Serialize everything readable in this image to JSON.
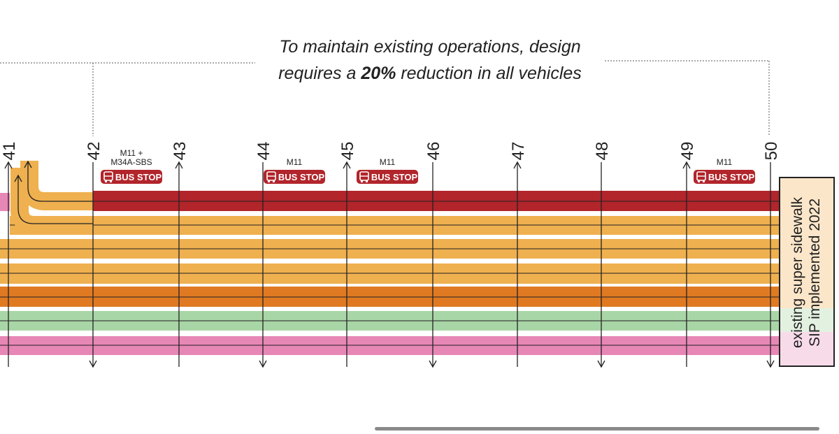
{
  "caption": {
    "line1": "To maintain existing operations, design",
    "line2_prefix": "requires a ",
    "line2_bold": "20%",
    "line2_suffix": " reduction in all vehicles"
  },
  "streets": [
    "41",
    "42",
    "43",
    "44",
    "45",
    "46",
    "47",
    "48",
    "49",
    "50"
  ],
  "street_arrows": [
    "up",
    "down",
    "up",
    "down",
    "up",
    "down",
    "up",
    "down",
    "up",
    "down"
  ],
  "bus_stops": [
    {
      "after_street": "42",
      "routes": [
        "M11 +",
        "M34A-SBS"
      ],
      "label": "BUS STOP"
    },
    {
      "after_street": "44",
      "routes": [
        "M11"
      ],
      "label": "BUS STOP"
    },
    {
      "after_street": "45",
      "routes": [
        "M11"
      ],
      "label": "BUS STOP"
    },
    {
      "after_street": "49",
      "routes": [
        "M11"
      ],
      "label": "BUS STOP"
    }
  ],
  "lanes": [
    {
      "type": "bus",
      "color": "#b1252b"
    },
    {
      "type": "general",
      "color": "#efb04f"
    },
    {
      "type": "general",
      "color": "#efb04f"
    },
    {
      "type": "general",
      "color": "#efb04f"
    },
    {
      "type": "general",
      "color": "#efb04f"
    },
    {
      "type": "truck",
      "color": "#e07a22"
    },
    {
      "type": "bike",
      "color": "#a9d6a6"
    },
    {
      "type": "bike",
      "color": "#a9d6a6"
    },
    {
      "type": "pedestrian",
      "color": "#e787b6"
    },
    {
      "type": "pedestrian",
      "color": "#e787b6"
    }
  ],
  "note": {
    "line1": "existing super sidewalk",
    "line2": "SIP implemented 2022"
  },
  "colors": {
    "bus_red": "#b1252b",
    "general_orange": "#efb04f",
    "truck_orange": "#e07a22",
    "bike_green": "#a9d6a6",
    "ped_pink": "#e787b6",
    "ink": "#222222"
  }
}
